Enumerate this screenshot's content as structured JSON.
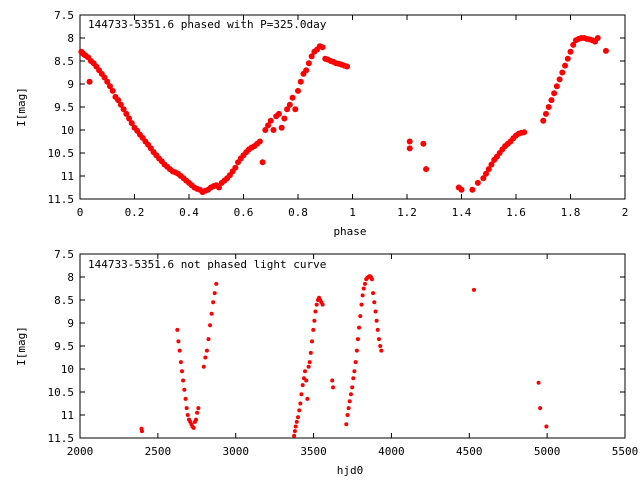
{
  "chart_data": [
    {
      "type": "scatter",
      "title": "144733-5351.6 phased with P=325.0day",
      "xlabel": "phase",
      "ylabel": "I[mag]",
      "xlim": [
        0,
        2
      ],
      "ylim": [
        7.5,
        11.5
      ],
      "y_inverted": true,
      "grid": false,
      "marker_color": "#ff0000",
      "xticks": [
        "0",
        "0.2",
        "0.4",
        "0.6",
        "0.8",
        "1",
        "1.2",
        "1.4",
        "1.6",
        "1.8",
        "2"
      ],
      "yticks": [
        "7.5",
        "8",
        "8.5",
        "9",
        "9.5",
        "10",
        "10.5",
        "11",
        "11.5"
      ],
      "points": [
        [
          0.005,
          8.3
        ],
        [
          0.01,
          8.33
        ],
        [
          0.015,
          8.36
        ],
        [
          0.02,
          8.38
        ],
        [
          0.03,
          8.42
        ],
        [
          0.035,
          8.95
        ],
        [
          0.04,
          8.5
        ],
        [
          0.05,
          8.55
        ],
        [
          0.06,
          8.62
        ],
        [
          0.07,
          8.7
        ],
        [
          0.08,
          8.78
        ],
        [
          0.09,
          8.86
        ],
        [
          0.1,
          8.95
        ],
        [
          0.11,
          9.05
        ],
        [
          0.12,
          9.15
        ],
        [
          0.13,
          9.28
        ],
        [
          0.14,
          9.35
        ],
        [
          0.15,
          9.45
        ],
        [
          0.16,
          9.55
        ],
        [
          0.17,
          9.65
        ],
        [
          0.18,
          9.75
        ],
        [
          0.19,
          9.85
        ],
        [
          0.2,
          9.95
        ],
        [
          0.21,
          10.02
        ],
        [
          0.22,
          10.1
        ],
        [
          0.23,
          10.17
        ],
        [
          0.24,
          10.25
        ],
        [
          0.25,
          10.32
        ],
        [
          0.26,
          10.4
        ],
        [
          0.27,
          10.48
        ],
        [
          0.28,
          10.55
        ],
        [
          0.29,
          10.62
        ],
        [
          0.3,
          10.68
        ],
        [
          0.31,
          10.75
        ],
        [
          0.32,
          10.8
        ],
        [
          0.33,
          10.85
        ],
        [
          0.34,
          10.9
        ],
        [
          0.35,
          10.92
        ],
        [
          0.36,
          10.95
        ],
        [
          0.37,
          11.0
        ],
        [
          0.38,
          11.05
        ],
        [
          0.39,
          11.1
        ],
        [
          0.4,
          11.15
        ],
        [
          0.41,
          11.2
        ],
        [
          0.42,
          11.25
        ],
        [
          0.43,
          11.28
        ],
        [
          0.44,
          11.3
        ],
        [
          0.45,
          11.35
        ],
        [
          0.46,
          11.32
        ],
        [
          0.47,
          11.3
        ],
        [
          0.48,
          11.25
        ],
        [
          0.49,
          11.22
        ],
        [
          0.5,
          11.2
        ],
        [
          0.51,
          11.25
        ],
        [
          0.52,
          11.15
        ],
        [
          0.53,
          11.1
        ],
        [
          0.54,
          11.05
        ],
        [
          0.55,
          10.98
        ],
        [
          0.56,
          10.9
        ],
        [
          0.57,
          10.82
        ],
        [
          0.58,
          10.7
        ],
        [
          0.59,
          10.62
        ],
        [
          0.6,
          10.55
        ],
        [
          0.61,
          10.48
        ],
        [
          0.62,
          10.42
        ],
        [
          0.63,
          10.38
        ],
        [
          0.64,
          10.35
        ],
        [
          0.65,
          10.3
        ],
        [
          0.66,
          10.25
        ],
        [
          0.67,
          10.7
        ],
        [
          0.68,
          10.0
        ],
        [
          0.69,
          9.9
        ],
        [
          0.7,
          9.8
        ],
        [
          0.71,
          10.0
        ],
        [
          0.72,
          9.7
        ],
        [
          0.73,
          9.65
        ],
        [
          0.74,
          9.95
        ],
        [
          0.75,
          9.75
        ],
        [
          0.76,
          9.55
        ],
        [
          0.77,
          9.45
        ],
        [
          0.78,
          9.3
        ],
        [
          0.79,
          9.55
        ],
        [
          0.8,
          9.15
        ],
        [
          0.81,
          8.95
        ],
        [
          0.82,
          8.78
        ],
        [
          0.83,
          8.7
        ],
        [
          0.84,
          8.55
        ],
        [
          0.85,
          8.4
        ],
        [
          0.86,
          8.3
        ],
        [
          0.87,
          8.25
        ],
        [
          0.88,
          8.18
        ],
        [
          0.89,
          8.2
        ],
        [
          0.9,
          8.45
        ],
        [
          0.91,
          8.47
        ],
        [
          0.92,
          8.5
        ],
        [
          0.93,
          8.52
        ],
        [
          0.94,
          8.55
        ],
        [
          0.95,
          8.56
        ],
        [
          0.96,
          8.58
        ],
        [
          0.97,
          8.6
        ],
        [
          0.98,
          8.62
        ],
        [
          1.21,
          10.25
        ],
        [
          1.21,
          10.4
        ],
        [
          1.26,
          10.3
        ],
        [
          1.27,
          10.85
        ],
        [
          1.39,
          11.25
        ],
        [
          1.4,
          11.3
        ],
        [
          1.44,
          11.3
        ],
        [
          1.46,
          11.15
        ],
        [
          1.48,
          11.05
        ],
        [
          1.49,
          10.95
        ],
        [
          1.5,
          10.85
        ],
        [
          1.51,
          10.75
        ],
        [
          1.52,
          10.65
        ],
        [
          1.53,
          10.58
        ],
        [
          1.54,
          10.5
        ],
        [
          1.55,
          10.42
        ],
        [
          1.56,
          10.35
        ],
        [
          1.57,
          10.3
        ],
        [
          1.58,
          10.25
        ],
        [
          1.59,
          10.18
        ],
        [
          1.6,
          10.12
        ],
        [
          1.61,
          10.08
        ],
        [
          1.62,
          10.06
        ],
        [
          1.63,
          10.05
        ],
        [
          1.7,
          9.8
        ],
        [
          1.71,
          9.65
        ],
        [
          1.72,
          9.5
        ],
        [
          1.73,
          9.35
        ],
        [
          1.74,
          9.2
        ],
        [
          1.75,
          9.05
        ],
        [
          1.76,
          8.9
        ],
        [
          1.77,
          8.75
        ],
        [
          1.78,
          8.6
        ],
        [
          1.79,
          8.45
        ],
        [
          1.8,
          8.3
        ],
        [
          1.81,
          8.15
        ],
        [
          1.82,
          8.05
        ],
        [
          1.83,
          8.02
        ],
        [
          1.84,
          8.0
        ],
        [
          1.85,
          8.0
        ],
        [
          1.86,
          8.02
        ],
        [
          1.87,
          8.03
        ],
        [
          1.88,
          8.05
        ],
        [
          1.89,
          8.08
        ],
        [
          1.9,
          8.0
        ],
        [
          1.93,
          8.28
        ]
      ]
    },
    {
      "type": "scatter",
      "title": "144733-5351.6 not phased light curve",
      "xlabel": "hjd0",
      "ylabel": "I[mag]",
      "xlim": [
        2000,
        5500
      ],
      "ylim": [
        7.5,
        11.5
      ],
      "y_inverted": true,
      "grid": false,
      "marker_color": "#ff0000",
      "xticks": [
        "2000",
        "2500",
        "3000",
        "3500",
        "4000",
        "4500",
        "5000",
        "5500"
      ],
      "yticks": [
        "7.5",
        "8",
        "8.5",
        "9",
        "9.5",
        "10",
        "10.5",
        "11",
        "11.5"
      ],
      "points": [
        [
          2395,
          11.3
        ],
        [
          2398,
          11.35
        ],
        [
          2625,
          9.15
        ],
        [
          2632,
          9.4
        ],
        [
          2640,
          9.6
        ],
        [
          2648,
          9.85
        ],
        [
          2655,
          10.05
        ],
        [
          2662,
          10.25
        ],
        [
          2670,
          10.45
        ],
        [
          2678,
          10.65
        ],
        [
          2685,
          10.85
        ],
        [
          2692,
          11.0
        ],
        [
          2700,
          11.1
        ],
        [
          2708,
          11.15
        ],
        [
          2715,
          11.2
        ],
        [
          2722,
          11.25
        ],
        [
          2730,
          11.28
        ],
        [
          2738,
          11.15
        ],
        [
          2745,
          11.1
        ],
        [
          2752,
          10.95
        ],
        [
          2760,
          10.85
        ],
        [
          2795,
          9.95
        ],
        [
          2805,
          9.75
        ],
        [
          2815,
          9.6
        ],
        [
          2825,
          9.35
        ],
        [
          2835,
          9.05
        ],
        [
          2845,
          8.8
        ],
        [
          2855,
          8.55
        ],
        [
          2865,
          8.35
        ],
        [
          2875,
          8.15
        ],
        [
          3375,
          11.45
        ],
        [
          3380,
          11.35
        ],
        [
          3385,
          11.25
        ],
        [
          3392,
          11.15
        ],
        [
          3400,
          11.05
        ],
        [
          3408,
          10.9
        ],
        [
          3415,
          10.75
        ],
        [
          3422,
          10.55
        ],
        [
          3430,
          10.35
        ],
        [
          3438,
          10.2
        ],
        [
          3445,
          10.05
        ],
        [
          3453,
          10.25
        ],
        [
          3460,
          10.65
        ],
        [
          3468,
          9.95
        ],
        [
          3475,
          9.85
        ],
        [
          3482,
          9.65
        ],
        [
          3490,
          9.4
        ],
        [
          3498,
          9.15
        ],
        [
          3505,
          8.95
        ],
        [
          3512,
          8.75
        ],
        [
          3520,
          8.6
        ],
        [
          3528,
          8.5
        ],
        [
          3535,
          8.45
        ],
        [
          3542,
          8.5
        ],
        [
          3550,
          8.55
        ],
        [
          3558,
          8.6
        ],
        [
          3620,
          10.25
        ],
        [
          3625,
          10.4
        ],
        [
          3710,
          11.2
        ],
        [
          3718,
          11.0
        ],
        [
          3725,
          10.85
        ],
        [
          3732,
          10.7
        ],
        [
          3740,
          10.55
        ],
        [
          3748,
          10.4
        ],
        [
          3755,
          10.2
        ],
        [
          3762,
          10.05
        ],
        [
          3770,
          9.85
        ],
        [
          3778,
          9.6
        ],
        [
          3785,
          9.35
        ],
        [
          3792,
          9.1
        ],
        [
          3800,
          8.85
        ],
        [
          3808,
          8.6
        ],
        [
          3815,
          8.4
        ],
        [
          3822,
          8.25
        ],
        [
          3830,
          8.15
        ],
        [
          3838,
          8.05
        ],
        [
          3845,
          8.02
        ],
        [
          3852,
          8.0
        ],
        [
          3860,
          7.98
        ],
        [
          3868,
          8.0
        ],
        [
          3875,
          8.05
        ],
        [
          3882,
          8.35
        ],
        [
          3890,
          8.55
        ],
        [
          3898,
          8.75
        ],
        [
          3905,
          8.95
        ],
        [
          3912,
          9.15
        ],
        [
          3920,
          9.35
        ],
        [
          3928,
          9.5
        ],
        [
          3935,
          9.6
        ],
        [
          4530,
          8.28
        ],
        [
          4945,
          10.3
        ],
        [
          4955,
          10.85
        ],
        [
          4995,
          11.25
        ]
      ]
    }
  ]
}
